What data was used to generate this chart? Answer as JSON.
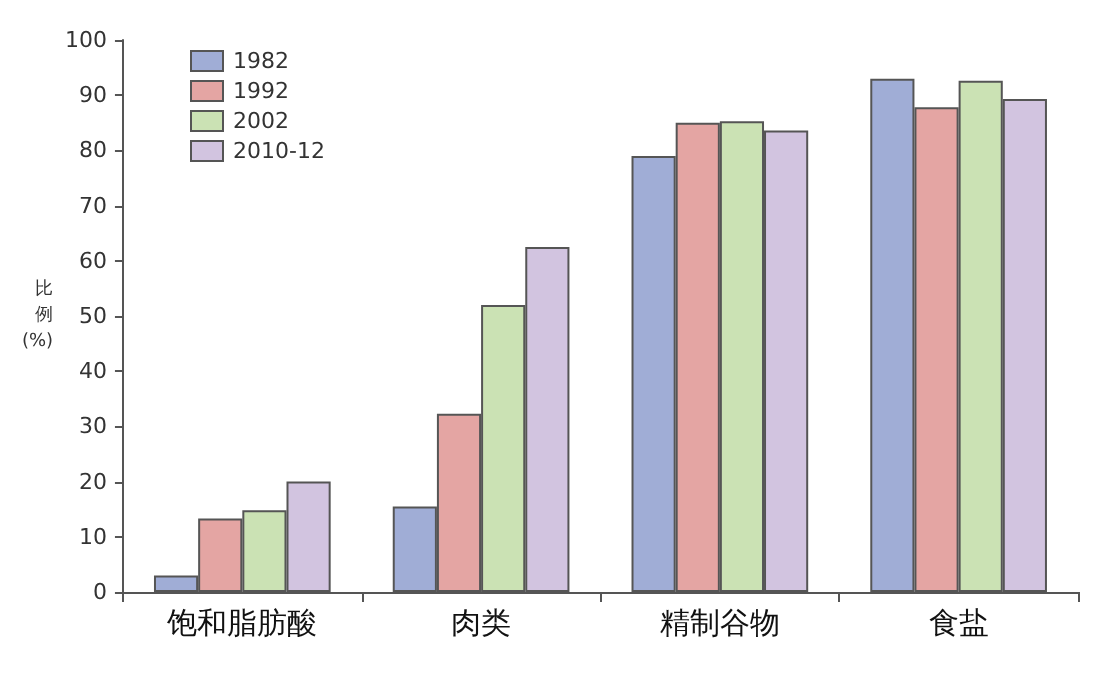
{
  "chart_data": {
    "type": "bar",
    "ylabel": "比例(%)",
    "categories": [
      "饱和脂肪酸",
      "肉类",
      "精制谷物",
      "食盐"
    ],
    "series": [
      {
        "name": "1982",
        "color": "#a0add6",
        "values": [
          3,
          15.5,
          79,
          93
        ]
      },
      {
        "name": "1992",
        "color": "#e4a5a3",
        "values": [
          13.3,
          32.3,
          85,
          87.8
        ]
      },
      {
        "name": "2002",
        "color": "#cbe2b4",
        "values": [
          14.8,
          52,
          85.3,
          92.6
        ]
      },
      {
        "name": "2010-12",
        "color": "#d2c4e0",
        "values": [
          20,
          62.5,
          83.6,
          89.3
        ]
      }
    ],
    "ylim": [
      0,
      100
    ],
    "yticks": [
      0,
      10,
      20,
      30,
      40,
      50,
      60,
      70,
      80,
      90,
      100
    ],
    "grid": false,
    "legend": "top left"
  }
}
